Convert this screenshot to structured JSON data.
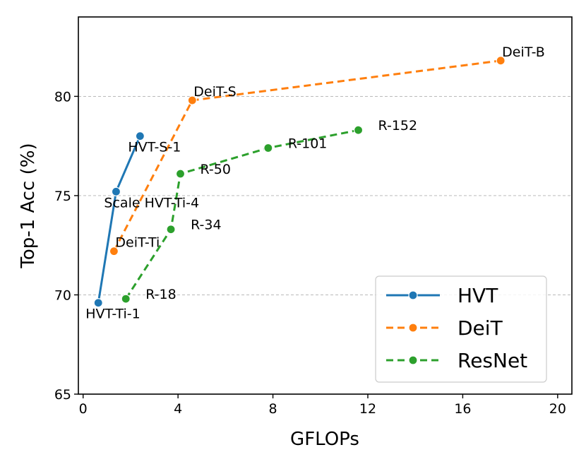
{
  "chart_data": {
    "type": "line",
    "xlabel": "GFLOPs",
    "ylabel": "Top-1 Acc (%)",
    "xlim": [
      -0.2,
      20.6
    ],
    "ylim": [
      65,
      84
    ],
    "xticks": [
      0,
      4,
      8,
      12,
      16,
      20
    ],
    "yticks": [
      65,
      70,
      75,
      80
    ],
    "grid": "horizontal dashed at y ticks",
    "legend": "bottom-right",
    "series": [
      {
        "name": "HVT",
        "color": "#1f77b4",
        "dash": "solid",
        "points": [
          {
            "x": 0.64,
            "y": 69.6,
            "label": "HVT-Ti-1"
          },
          {
            "x": 1.39,
            "y": 75.2,
            "label": "Scale HVT-Ti-4"
          },
          {
            "x": 2.4,
            "y": 78.0,
            "label": "HVT-S-1"
          }
        ]
      },
      {
        "name": "DeiT",
        "color": "#ff7f0e",
        "dash": "dashed",
        "points": [
          {
            "x": 1.3,
            "y": 72.2,
            "label": "DeiT-Ti"
          },
          {
            "x": 4.6,
            "y": 79.8,
            "label": "DeiT-S"
          },
          {
            "x": 17.6,
            "y": 81.8,
            "label": "DeiT-B"
          }
        ]
      },
      {
        "name": "ResNet",
        "color": "#2ca02c",
        "dash": "dashed",
        "points": [
          {
            "x": 1.8,
            "y": 69.8,
            "label": "R-18"
          },
          {
            "x": 3.7,
            "y": 73.3,
            "label": "R-34"
          },
          {
            "x": 4.1,
            "y": 76.1,
            "label": "R-50"
          },
          {
            "x": 7.8,
            "y": 77.4,
            "label": "R-101"
          },
          {
            "x": 11.6,
            "y": 78.3,
            "label": "R-152"
          }
        ]
      }
    ]
  }
}
